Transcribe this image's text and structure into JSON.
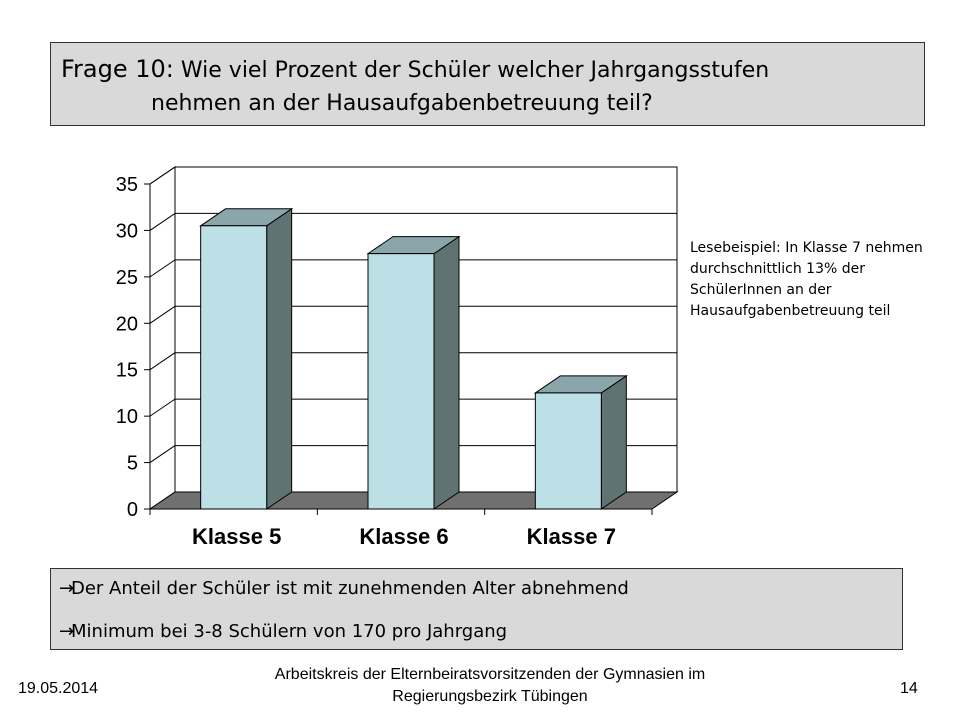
{
  "slide": {
    "title_prefix": "Frage 10:",
    "title_line1": "Wie viel Prozent der Schüler welcher Jahrgangsstufen",
    "title_line2": "nehmen an der Hausaufgabenbetreuung teil?",
    "note": "Lesebeispiel:  In Klasse 7 nehmen durchschnittlich 13% der SchülerInnen an der Hausaufgabenbetreuung teil",
    "summary": [
      {
        "arrow": "→",
        "text": "Der Anteil der Schüler ist mit zunehmenden Alter abnehmend"
      },
      {
        "arrow": "→",
        "text": "Minimum bei 3-8 Schülern von 170 pro Jahrgang"
      }
    ],
    "footer": {
      "date": "19.05.2014",
      "org": "Arbeitskreis der Elternbeiratsvorsitzenden der Gymnasien im Regierungsbezirk Tübingen",
      "page": "14"
    }
  },
  "chart_data": {
    "type": "bar",
    "style": "3d",
    "categories": [
      "Klasse 5",
      "Klasse 6",
      "Klasse 7"
    ],
    "values": [
      30.5,
      27.5,
      12.5
    ],
    "ylim": [
      0,
      35
    ],
    "yticks": [
      "0",
      "5",
      "10",
      "15",
      "20",
      "25",
      "30",
      "35"
    ],
    "grid": true,
    "colors": {
      "bar_front": "#bde0e6",
      "bar_top": "#8aa6aa",
      "bar_side": "#5f7372",
      "floor": "#707070",
      "grid": "#000000"
    }
  }
}
